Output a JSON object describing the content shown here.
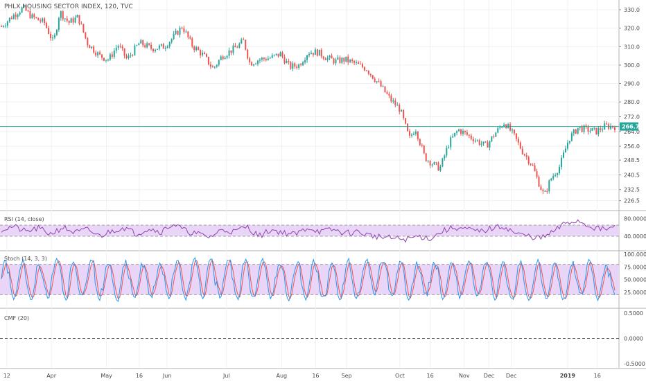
{
  "chart_data": [
    {
      "pane": "price",
      "type": "candlestick",
      "title": "PHLX HOUSING SECTOR INDEX, 120, TVC",
      "y_ticks": [
        "330.0",
        "320.0",
        "310.0",
        "300.0",
        "290.0",
        "280.0",
        "272.0",
        "264.0",
        "256.0",
        "248.5",
        "240.5",
        "232.5",
        "226.5"
      ],
      "y_tick_values": [
        330.0,
        320.0,
        310.0,
        300.0,
        290.0,
        280.0,
        272.0,
        264.0,
        256.0,
        248.5,
        240.5,
        232.5,
        226.5
      ],
      "last_price_label": "266.7",
      "last_price": 266.7,
      "x_ticks": [
        "12",
        "Apr",
        "May",
        "16",
        "Jun",
        "Jul",
        "Aug",
        "16",
        "Sep",
        "Oct",
        "16",
        "Nov",
        "Dec",
        "Dec",
        "2019",
        "16"
      ],
      "series_path": [
        {
          "t": 0.0,
          "v": 321
        },
        {
          "t": 0.02,
          "v": 327
        },
        {
          "t": 0.035,
          "v": 331
        },
        {
          "t": 0.05,
          "v": 326
        },
        {
          "t": 0.07,
          "v": 323
        },
        {
          "t": 0.085,
          "v": 312
        },
        {
          "t": 0.095,
          "v": 329
        },
        {
          "t": 0.11,
          "v": 323
        },
        {
          "t": 0.125,
          "v": 326
        },
        {
          "t": 0.14,
          "v": 312
        },
        {
          "t": 0.16,
          "v": 305
        },
        {
          "t": 0.175,
          "v": 303
        },
        {
          "t": 0.19,
          "v": 311
        },
        {
          "t": 0.205,
          "v": 303
        },
        {
          "t": 0.225,
          "v": 312
        },
        {
          "t": 0.245,
          "v": 309
        },
        {
          "t": 0.265,
          "v": 310
        },
        {
          "t": 0.28,
          "v": 315
        },
        {
          "t": 0.295,
          "v": 321
        },
        {
          "t": 0.31,
          "v": 311
        },
        {
          "t": 0.33,
          "v": 305
        },
        {
          "t": 0.345,
          "v": 298
        },
        {
          "t": 0.36,
          "v": 305
        },
        {
          "t": 0.38,
          "v": 309
        },
        {
          "t": 0.395,
          "v": 313
        },
        {
          "t": 0.405,
          "v": 301
        },
        {
          "t": 0.42,
          "v": 303
        },
        {
          "t": 0.44,
          "v": 304
        },
        {
          "t": 0.455,
          "v": 306
        },
        {
          "t": 0.47,
          "v": 299
        },
        {
          "t": 0.485,
          "v": 300
        },
        {
          "t": 0.5,
          "v": 307
        },
        {
          "t": 0.515,
          "v": 307
        },
        {
          "t": 0.53,
          "v": 304
        },
        {
          "t": 0.545,
          "v": 302
        },
        {
          "t": 0.56,
          "v": 303
        },
        {
          "t": 0.575,
          "v": 301
        },
        {
          "t": 0.595,
          "v": 298
        },
        {
          "t": 0.615,
          "v": 290
        },
        {
          "t": 0.635,
          "v": 281
        },
        {
          "t": 0.65,
          "v": 276
        },
        {
          "t": 0.665,
          "v": 260
        },
        {
          "t": 0.675,
          "v": 266
        },
        {
          "t": 0.69,
          "v": 250
        },
        {
          "t": 0.705,
          "v": 246
        },
        {
          "t": 0.715,
          "v": 244
        },
        {
          "t": 0.73,
          "v": 258
        },
        {
          "t": 0.745,
          "v": 265
        },
        {
          "t": 0.76,
          "v": 262
        },
        {
          "t": 0.775,
          "v": 259
        },
        {
          "t": 0.79,
          "v": 256
        },
        {
          "t": 0.805,
          "v": 263
        },
        {
          "t": 0.82,
          "v": 269
        },
        {
          "t": 0.835,
          "v": 262
        },
        {
          "t": 0.85,
          "v": 253
        },
        {
          "t": 0.865,
          "v": 246
        },
        {
          "t": 0.875,
          "v": 237
        },
        {
          "t": 0.885,
          "v": 229
        },
        {
          "t": 0.895,
          "v": 238
        },
        {
          "t": 0.91,
          "v": 245
        },
        {
          "t": 0.925,
          "v": 260
        },
        {
          "t": 0.94,
          "v": 266
        },
        {
          "t": 0.955,
          "v": 265
        },
        {
          "t": 0.97,
          "v": 264
        },
        {
          "t": 0.985,
          "v": 267
        },
        {
          "t": 1.0,
          "v": 266.7
        }
      ],
      "colors": {
        "up": "#26a69a",
        "down": "#ef5350",
        "last_line": "#26a69a"
      }
    },
    {
      "pane": "rsi",
      "type": "line",
      "label": "RSI (14, close)",
      "y_ticks": [
        "80.0000",
        "40.0000"
      ],
      "y_tick_values": [
        80,
        40
      ],
      "band": [
        40,
        65
      ],
      "line_color": "#8e44ad",
      "band_color": "#e9d5f7",
      "series_path": [
        {
          "t": 0.0,
          "v": 55
        },
        {
          "t": 0.02,
          "v": 62
        },
        {
          "t": 0.04,
          "v": 50
        },
        {
          "t": 0.06,
          "v": 58
        },
        {
          "t": 0.08,
          "v": 45
        },
        {
          "t": 0.1,
          "v": 60
        },
        {
          "t": 0.12,
          "v": 48
        },
        {
          "t": 0.14,
          "v": 55
        },
        {
          "t": 0.16,
          "v": 40
        },
        {
          "t": 0.18,
          "v": 52
        },
        {
          "t": 0.2,
          "v": 60
        },
        {
          "t": 0.22,
          "v": 45
        },
        {
          "t": 0.24,
          "v": 58
        },
        {
          "t": 0.26,
          "v": 50
        },
        {
          "t": 0.28,
          "v": 68
        },
        {
          "t": 0.3,
          "v": 52
        },
        {
          "t": 0.32,
          "v": 45
        },
        {
          "t": 0.34,
          "v": 38
        },
        {
          "t": 0.36,
          "v": 55
        },
        {
          "t": 0.38,
          "v": 50
        },
        {
          "t": 0.4,
          "v": 62
        },
        {
          "t": 0.42,
          "v": 40
        },
        {
          "t": 0.44,
          "v": 55
        },
        {
          "t": 0.46,
          "v": 48
        },
        {
          "t": 0.48,
          "v": 44
        },
        {
          "t": 0.5,
          "v": 60
        },
        {
          "t": 0.52,
          "v": 50
        },
        {
          "t": 0.54,
          "v": 55
        },
        {
          "t": 0.56,
          "v": 47
        },
        {
          "t": 0.58,
          "v": 50
        },
        {
          "t": 0.6,
          "v": 42
        },
        {
          "t": 0.62,
          "v": 38
        },
        {
          "t": 0.64,
          "v": 35
        },
        {
          "t": 0.66,
          "v": 33
        },
        {
          "t": 0.68,
          "v": 40
        },
        {
          "t": 0.7,
          "v": 35
        },
        {
          "t": 0.72,
          "v": 52
        },
        {
          "t": 0.74,
          "v": 60
        },
        {
          "t": 0.76,
          "v": 55
        },
        {
          "t": 0.78,
          "v": 50
        },
        {
          "t": 0.8,
          "v": 58
        },
        {
          "t": 0.82,
          "v": 62
        },
        {
          "t": 0.84,
          "v": 45
        },
        {
          "t": 0.86,
          "v": 40
        },
        {
          "t": 0.88,
          "v": 35
        },
        {
          "t": 0.9,
          "v": 50
        },
        {
          "t": 0.92,
          "v": 70
        },
        {
          "t": 0.94,
          "v": 75
        },
        {
          "t": 0.96,
          "v": 62
        },
        {
          "t": 0.98,
          "v": 55
        },
        {
          "t": 1.0,
          "v": 60
        }
      ]
    },
    {
      "pane": "stoch",
      "type": "line",
      "label": "Stoch (14, 3, 3)",
      "y_ticks": [
        "100.0000",
        "75.0000",
        "50.0000",
        "25.0000"
      ],
      "y_tick_values": [
        100,
        75,
        50,
        25
      ],
      "band": [
        20,
        80
      ],
      "k_color": "#2196f3",
      "d_color": "#ef5350",
      "band_color": "#e9d5f7",
      "osc_period": 0.028,
      "lo": 10,
      "hi": 90
    },
    {
      "pane": "cmf",
      "type": "line",
      "label": "CMF (20)",
      "y_ticks": [
        "0.5000",
        "0.0000",
        "-0.5000"
      ],
      "y_tick_values": [
        0.5,
        0.0,
        -0.5
      ],
      "zero_line": 0.0
    }
  ]
}
